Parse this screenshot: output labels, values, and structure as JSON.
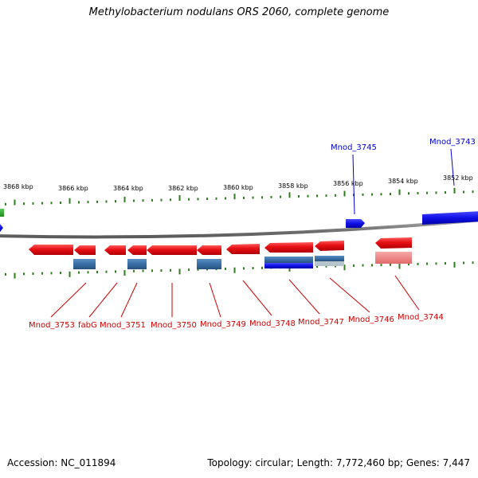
{
  "title": "Methylobacterium nodulans ORS 2060, complete genome",
  "footer": {
    "accession": "Accession: NC_011894",
    "summary": "Topology: circular; Length: 7,772,460 bp; Genes: 7,447"
  },
  "colors": {
    "backbone": "#8a8a8a",
    "tick": "#2e7d1e",
    "reverse_gene": "#e8101a",
    "forward_gene": "#1a1aee",
    "label_reverse": "#cc0000",
    "label_forward": "#0000cc",
    "cds_blue": "#3f78b0",
    "other_gene": "#2aa02a"
  },
  "scale_labels": [
    "3868 kbp",
    "3866 kbp",
    "3864 kbp",
    "3862 kbp",
    "3860 kbp",
    "3858 kbp",
    "3856 kbp",
    "3854 kbp",
    "3852 kbp"
  ],
  "gene_labels": [
    {
      "text": "Mnod_3753",
      "strand": "reverse"
    },
    {
      "text": "fabG",
      "strand": "reverse"
    },
    {
      "text": "Mnod_3751",
      "strand": "reverse"
    },
    {
      "text": "Mnod_3750",
      "strand": "reverse"
    },
    {
      "text": "Mnod_3749",
      "strand": "reverse"
    },
    {
      "text": "Mnod_3748",
      "strand": "reverse"
    },
    {
      "text": "Mnod_3747",
      "strand": "reverse"
    },
    {
      "text": "Mnod_3746",
      "strand": "reverse"
    },
    {
      "text": "Mnod_3744",
      "strand": "reverse"
    },
    {
      "text": "Mnod_3745",
      "strand": "forward"
    },
    {
      "text": "Mnod_3743",
      "strand": "forward"
    }
  ]
}
